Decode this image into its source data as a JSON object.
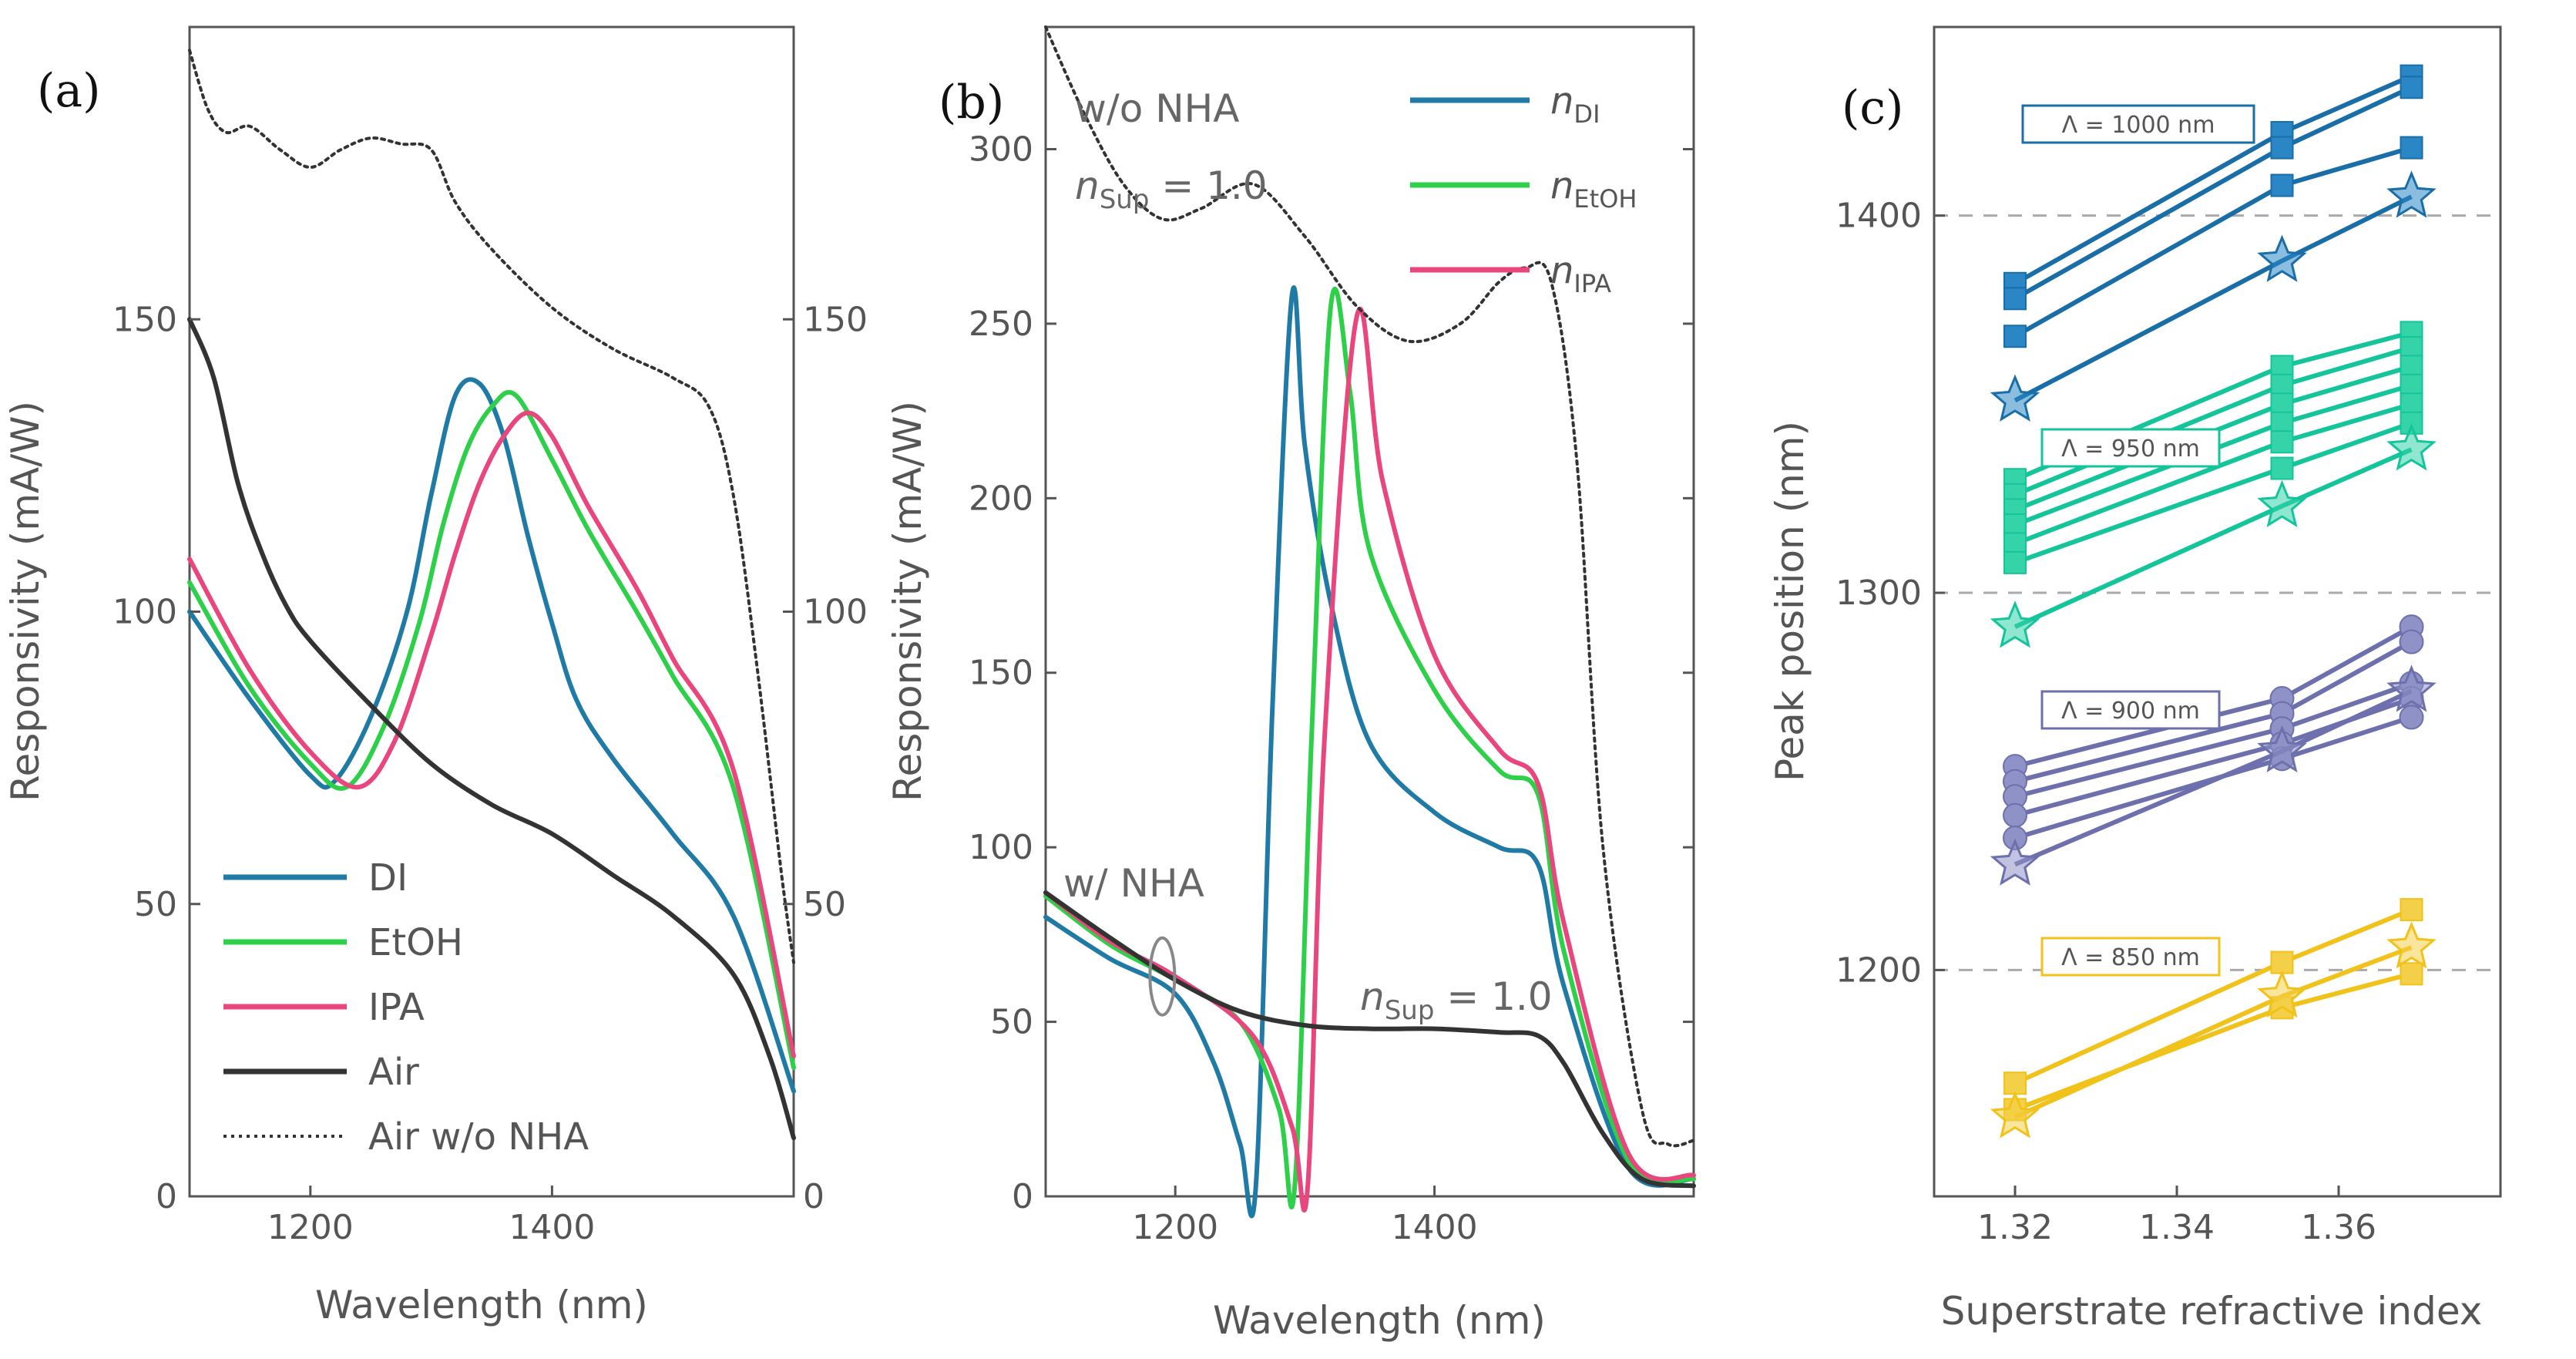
{
  "figure": {
    "panel_labels": [
      "(a)",
      "(b)",
      "(c)"
    ]
  },
  "chart_data": [
    {
      "type": "line",
      "panel": "(a)",
      "xlabel": "Wavelength (nm)",
      "ylabel": "Responsivity (mA/W)",
      "xlim": [
        1100,
        1600
      ],
      "ylim": [
        0,
        200
      ],
      "xticks": [
        1200,
        1400
      ],
      "yticks": [
        0,
        50,
        100,
        150
      ],
      "legend": "bottom-left",
      "series": [
        {
          "name": "DI",
          "color": "#1f7aa5",
          "style": "solid",
          "x": [
            1100,
            1150,
            1200,
            1220,
            1250,
            1280,
            1300,
            1320,
            1340,
            1360,
            1380,
            1400,
            1420,
            1450,
            1500,
            1550,
            1600
          ],
          "y": [
            100,
            85,
            72,
            71,
            82,
            100,
            120,
            137,
            139,
            130,
            113,
            98,
            85,
            75,
            62,
            48,
            18
          ]
        },
        {
          "name": "EtOH",
          "color": "#2ed04a",
          "style": "solid",
          "x": [
            1100,
            1150,
            1200,
            1230,
            1260,
            1290,
            1310,
            1330,
            1350,
            1370,
            1400,
            1430,
            1470,
            1500,
            1550,
            1600
          ],
          "y": [
            105,
            87,
            74,
            70,
            80,
            98,
            115,
            128,
            135,
            137,
            126,
            114,
            100,
            89,
            70,
            22
          ]
        },
        {
          "name": "IPA",
          "color": "#e8467c",
          "style": "solid",
          "x": [
            1100,
            1150,
            1200,
            1240,
            1270,
            1300,
            1320,
            1340,
            1360,
            1380,
            1400,
            1430,
            1470,
            1500,
            1550,
            1600
          ],
          "y": [
            109,
            90,
            76,
            70,
            78,
            96,
            110,
            122,
            130,
            134,
            130,
            118,
            104,
            92,
            73,
            24
          ]
        },
        {
          "name": "Air",
          "color": "#333333",
          "style": "solid",
          "x": [
            1100,
            1120,
            1140,
            1160,
            1180,
            1200,
            1250,
            1300,
            1350,
            1400,
            1450,
            1500,
            1550,
            1580,
            1600
          ],
          "y": [
            150,
            140,
            122,
            110,
            101,
            95,
            84,
            74,
            67,
            62,
            55,
            48,
            38,
            24,
            10
          ]
        },
        {
          "name": "Air w/o NHA",
          "color": "#333333",
          "style": "dotted",
          "x": [
            1100,
            1115,
            1130,
            1150,
            1175,
            1200,
            1225,
            1250,
            1275,
            1300,
            1320,
            1350,
            1400,
            1450,
            1500,
            1530,
            1550,
            1570,
            1590,
            1600
          ],
          "y": [
            196,
            186,
            182,
            183,
            179,
            176,
            179,
            181,
            180,
            179,
            170,
            162,
            152,
            145,
            140,
            135,
            120,
            90,
            55,
            40
          ]
        }
      ]
    },
    {
      "type": "line",
      "panel": "(b)",
      "xlabel": "Wavelength (nm)",
      "ylabel": "Responsivity (mA/W)",
      "xlim": [
        1100,
        1600
      ],
      "ylim": [
        0,
        335
      ],
      "xticks": [
        1200,
        1400
      ],
      "yticks": [
        0,
        50,
        100,
        150,
        200,
        250,
        300
      ],
      "legend": "top-right",
      "annotations": [
        "w/o NHA",
        "w/ NHA"
      ],
      "series": [
        {
          "name": "n_DI",
          "symbol": "n",
          "subscript": "DI",
          "color": "#1f7aa5",
          "style": "solid",
          "x": [
            1100,
            1150,
            1200,
            1230,
            1250,
            1262,
            1275,
            1290,
            1300,
            1320,
            1350,
            1400,
            1450,
            1480,
            1500,
            1550,
            1600
          ],
          "y": [
            80,
            68,
            58,
            38,
            15,
            2,
            140,
            258,
            215,
            170,
            130,
            110,
            100,
            95,
            60,
            8,
            5
          ]
        },
        {
          "name": "n_EtOH",
          "symbol": "n",
          "subscript": "EtOH",
          "color": "#2ed04a",
          "style": "solid",
          "x": [
            1100,
            1150,
            1200,
            1250,
            1280,
            1292,
            1305,
            1320,
            1335,
            1350,
            1400,
            1450,
            1480,
            1500,
            1550,
            1600
          ],
          "y": [
            86,
            72,
            62,
            50,
            25,
            2,
            130,
            255,
            230,
            185,
            145,
            122,
            115,
            70,
            10,
            5
          ]
        },
        {
          "name": "n_IPA",
          "symbol": "n",
          "subscript": "IPA",
          "color": "#e8467c",
          "style": "solid",
          "x": [
            1100,
            1150,
            1200,
            1260,
            1290,
            1302,
            1315,
            1340,
            1360,
            1400,
            1450,
            1480,
            1500,
            1550,
            1600
          ],
          "y": [
            87,
            73,
            63,
            46,
            20,
            2,
            130,
            252,
            205,
            155,
            128,
            118,
            78,
            12,
            6
          ]
        },
        {
          "name": "n_Sup = 1.0 (w/ NHA)",
          "color": "#333333",
          "style": "solid",
          "x": [
            1100,
            1150,
            1200,
            1250,
            1300,
            1350,
            1400,
            1450,
            1480,
            1500,
            1530,
            1560,
            1600
          ],
          "y": [
            87,
            74,
            62,
            53,
            49,
            48,
            48,
            47,
            46,
            38,
            18,
            5,
            3
          ]
        },
        {
          "name": "n_Sup = 1.0 (w/o NHA)",
          "color": "#333333",
          "style": "dotted",
          "x": [
            1100,
            1130,
            1160,
            1190,
            1220,
            1260,
            1300,
            1340,
            1380,
            1420,
            1450,
            1470,
            1490,
            1510,
            1530,
            1560,
            1580,
            1600
          ],
          "y": [
            335,
            310,
            290,
            280,
            283,
            290,
            275,
            255,
            245,
            250,
            262,
            266,
            262,
            210,
            100,
            25,
            15,
            16
          ]
        }
      ],
      "legend_labels": {
        "n_symbol": "n",
        "di": "DI",
        "etoh": "EtOH",
        "ipa": "IPA",
        "nsup_symbol": "n",
        "nsup_sub": "Sup",
        "nsup_val": " = 1.0",
        "wo_nha": "w/o NHA",
        "w_nha": "w/ NHA"
      }
    },
    {
      "type": "scatter",
      "panel": "(c)",
      "xlabel": "Superstrate refractive index",
      "ylabel": "Peak position (nm)",
      "xlim": [
        1.31,
        1.38
      ],
      "ylim": [
        1140,
        1450
      ],
      "xticks": [
        "1.32",
        "1.34",
        "1.36"
      ],
      "yticks": [
        1200,
        1300,
        1400
      ],
      "x": [
        1.32,
        1.353,
        1.369
      ],
      "groups": [
        {
          "label": "Λ = 1000 nm",
          "color": "#1a6ea8",
          "fill": "#2b86c5",
          "marker": "square",
          "lines": [
            [
              1382,
              1422,
              1437
            ],
            [
              1378,
              1418,
              1434
            ],
            [
              1368,
              1408,
              1418
            ]
          ],
          "star": [
            1351,
            1388,
            1405
          ]
        },
        {
          "label": "Λ = 950 nm",
          "color": "#14c49a",
          "fill": "#35d3a8",
          "marker": "square",
          "lines": [
            [
              1330,
              1360,
              1369
            ],
            [
              1326,
              1355,
              1365
            ],
            [
              1322,
              1350,
              1360
            ],
            [
              1318,
              1345,
              1355
            ],
            [
              1313,
              1340,
              1350
            ],
            [
              1308,
              1333,
              1345
            ]
          ],
          "star": [
            1291,
            1323,
            1338
          ]
        },
        {
          "label": "Λ = 900 nm",
          "color": "#6d70ad",
          "fill": "#8f92c6",
          "marker": "circle",
          "lines": [
            [
              1254,
              1272,
              1291
            ],
            [
              1250,
              1268,
              1287
            ],
            [
              1246,
              1264,
              1276
            ],
            [
              1241,
              1260,
              1272
            ],
            [
              1235,
              1256,
              1267
            ]
          ],
          "star": [
            1228,
            1258,
            1274
          ]
        },
        {
          "label": "Λ = 850 nm",
          "color": "#f0c21a",
          "fill": "#f4cf48",
          "marker": "square",
          "lines": [
            [
              1170,
              1202,
              1216
            ],
            [
              1163,
              1190,
              1199
            ]
          ],
          "star": [
            1161,
            1193,
            1206
          ]
        }
      ],
      "reference_lines": [
        1200,
        1300,
        1400
      ]
    }
  ]
}
